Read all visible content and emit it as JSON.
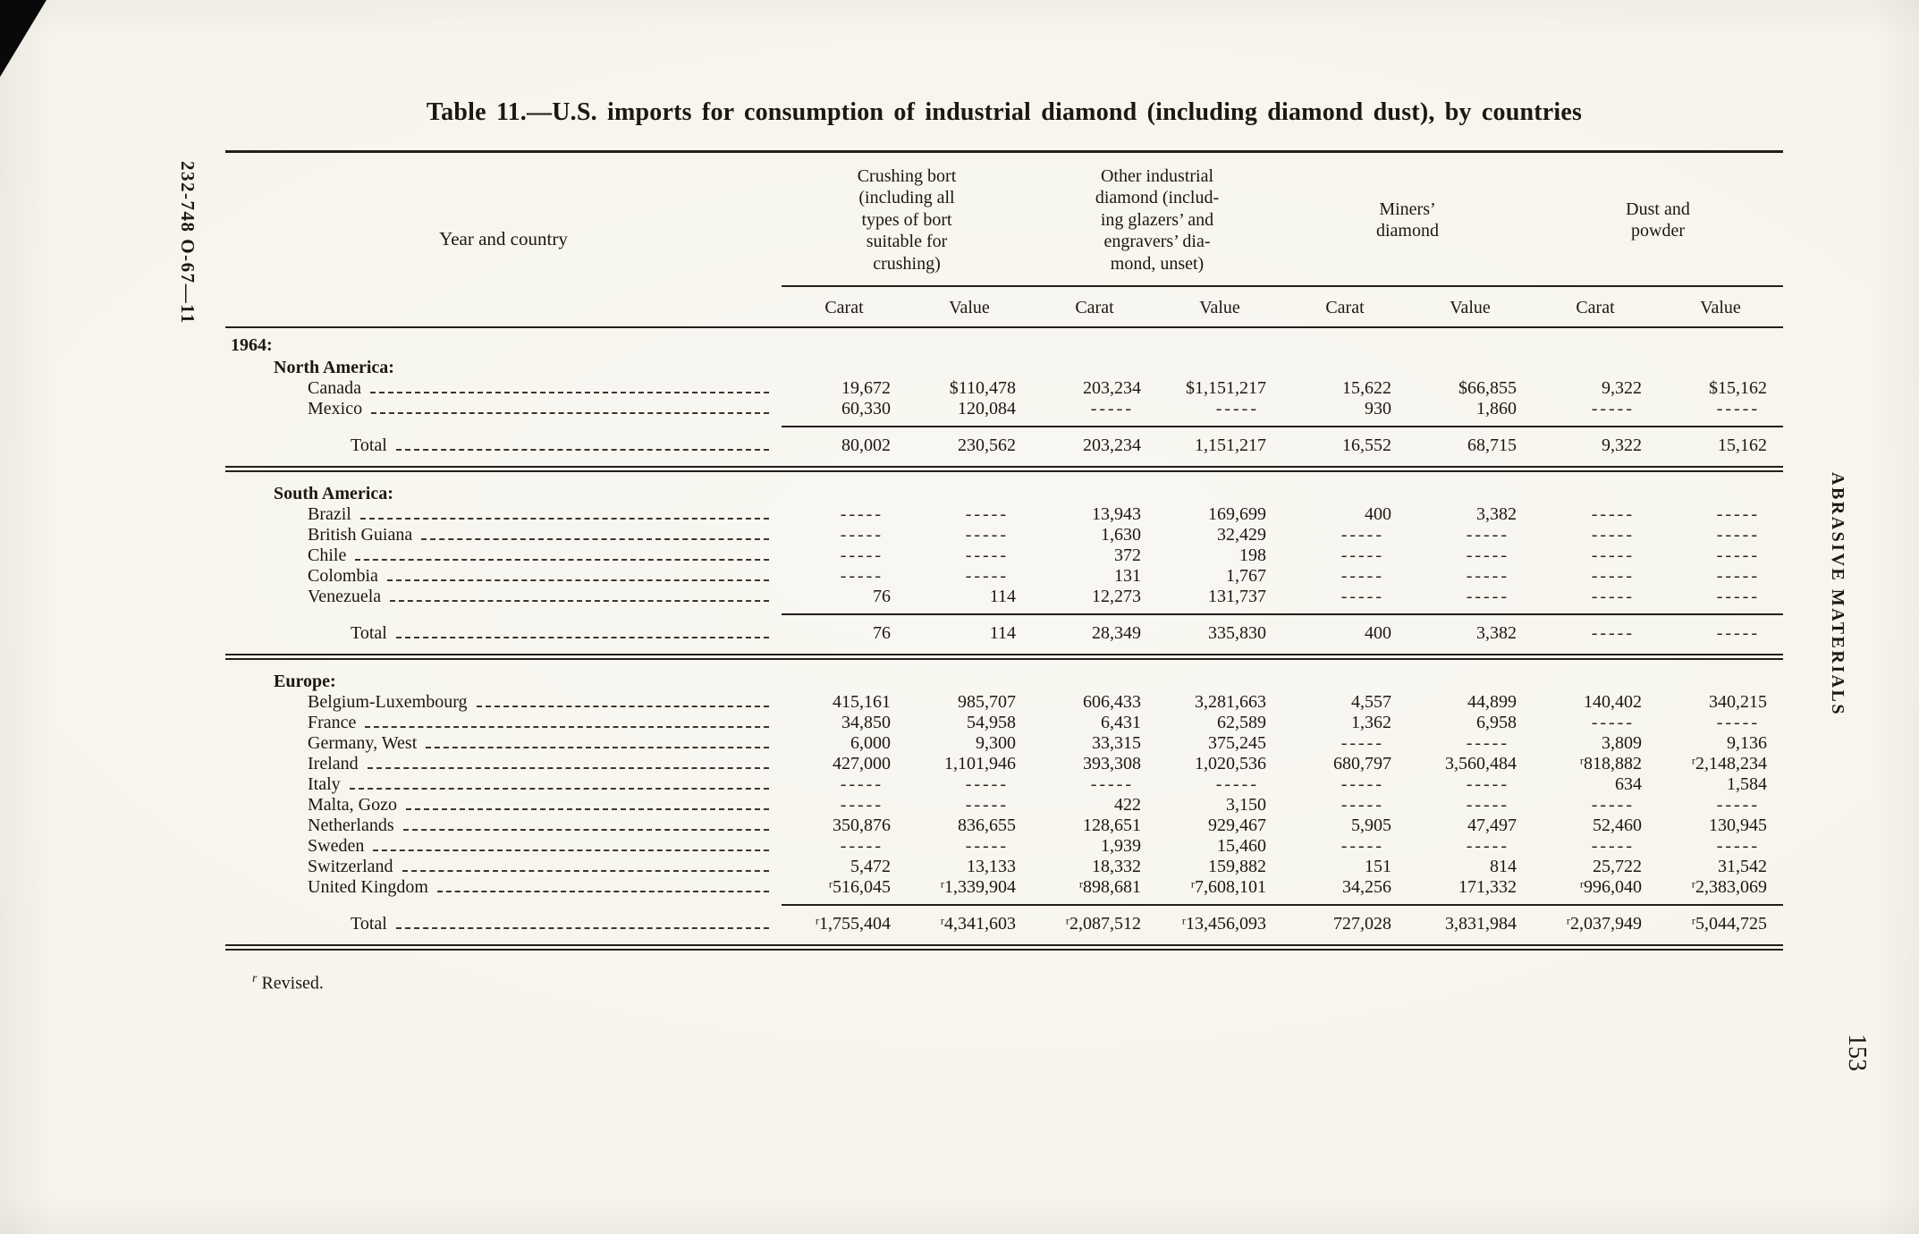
{
  "page": {
    "title": "Table 11.—U.S. imports for consumption of industrial diamond (including diamond dust), by countries",
    "left_margin_text": "232-748 O-67—11",
    "right_margin_text": "ABRASIVE MATERIALS",
    "page_number": "153",
    "footnote_symbol": "r",
    "footnote_text": "Revised."
  },
  "table": {
    "row_header": "Year and country",
    "column_groups": [
      {
        "label": "Crushing bort\n(including all\ntypes of bort\nsuitable for\ncrushing)"
      },
      {
        "label": "Other industrial\ndiamond (includ-\ning glazers’ and\nengravers’ dia-\nmond, unset)"
      },
      {
        "label": "Miners’\ndiamond"
      },
      {
        "label": "Dust and\npowder"
      }
    ],
    "sub_headers": [
      "Carat",
      "Value",
      "Carat",
      "Value",
      "Carat",
      "Value",
      "Carat",
      "Value"
    ],
    "year_label": "1964:",
    "sections": [
      {
        "name": "North America:",
        "rows": [
          {
            "label": "Canada",
            "cells": [
              "19,672",
              "$110,478",
              "203,234",
              "$1,151,217",
              "15,622",
              "$66,855",
              "9,322",
              "$15,162"
            ]
          },
          {
            "label": "Mexico",
            "cells": [
              "60,330",
              "120,084",
              "-----",
              "-----",
              "930",
              "1,860",
              "-----",
              "-----"
            ]
          }
        ],
        "total": {
          "label": "Total",
          "cells": [
            "80,002",
            "230,562",
            "203,234",
            "1,151,217",
            "16,552",
            "68,715",
            "9,322",
            "15,162"
          ]
        }
      },
      {
        "name": "South America:",
        "rows": [
          {
            "label": "Brazil",
            "cells": [
              "-----",
              "-----",
              "13,943",
              "169,699",
              "400",
              "3,382",
              "-----",
              "-----"
            ]
          },
          {
            "label": "British Guiana",
            "cells": [
              "-----",
              "-----",
              "1,630",
              "32,429",
              "-----",
              "-----",
              "-----",
              "-----"
            ]
          },
          {
            "label": "Chile",
            "cells": [
              "-----",
              "-----",
              "372",
              "198",
              "-----",
              "-----",
              "-----",
              "-----"
            ]
          },
          {
            "label": "Colombia",
            "cells": [
              "-----",
              "-----",
              "131",
              "1,767",
              "-----",
              "-----",
              "-----",
              "-----"
            ]
          },
          {
            "label": "Venezuela",
            "cells": [
              "76",
              "114",
              "12,273",
              "131,737",
              "-----",
              "-----",
              "-----",
              "-----"
            ]
          }
        ],
        "total": {
          "label": "Total",
          "cells": [
            "76",
            "114",
            "28,349",
            "335,830",
            "400",
            "3,382",
            "-----",
            "-----"
          ]
        }
      },
      {
        "name": "Europe:",
        "rows": [
          {
            "label": "Belgium-Luxembourg",
            "cells": [
              "415,161",
              "985,707",
              "606,433",
              "3,281,663",
              "4,557",
              "44,899",
              "140,402",
              "340,215"
            ]
          },
          {
            "label": "France",
            "cells": [
              "34,850",
              "54,958",
              "6,431",
              "62,589",
              "1,362",
              "6,958",
              "-----",
              "-----"
            ]
          },
          {
            "label": "Germany, West",
            "cells": [
              "6,000",
              "9,300",
              "33,315",
              "375,245",
              "-----",
              "-----",
              "3,809",
              "9,136"
            ]
          },
          {
            "label": "Ireland",
            "cells": [
              "427,000",
              "1,101,946",
              "393,308",
              "1,020,536",
              "680,797",
              "3,560,484",
              "ʳ818,882",
              "ʳ2,148,234"
            ]
          },
          {
            "label": "Italy",
            "cells": [
              "-----",
              "-----",
              "-----",
              "-----",
              "-----",
              "-----",
              "634",
              "1,584"
            ]
          },
          {
            "label": "Malta, Gozo",
            "cells": [
              "-----",
              "-----",
              "422",
              "3,150",
              "-----",
              "-----",
              "-----",
              "-----"
            ]
          },
          {
            "label": "Netherlands",
            "cells": [
              "350,876",
              "836,655",
              "128,651",
              "929,467",
              "5,905",
              "47,497",
              "52,460",
              "130,945"
            ]
          },
          {
            "label": "Sweden",
            "cells": [
              "-----",
              "-----",
              "1,939",
              "15,460",
              "-----",
              "-----",
              "-----",
              "-----"
            ]
          },
          {
            "label": "Switzerland",
            "cells": [
              "5,472",
              "13,133",
              "18,332",
              "159,882",
              "151",
              "814",
              "25,722",
              "31,542"
            ]
          },
          {
            "label": "United Kingdom",
            "cells": [
              "ʳ516,045",
              "ʳ1,339,904",
              "ʳ898,681",
              "ʳ7,608,101",
              "34,256",
              "171,332",
              "ʳ996,040",
              "ʳ2,383,069"
            ]
          }
        ],
        "total": {
          "label": "Total",
          "cells": [
            "ʳ1,755,404",
            "ʳ4,341,603",
            "ʳ2,087,512",
            "ʳ13,456,093",
            "727,028",
            "3,831,984",
            "ʳ2,037,949",
            "ʳ5,044,725"
          ]
        }
      }
    ]
  }
}
